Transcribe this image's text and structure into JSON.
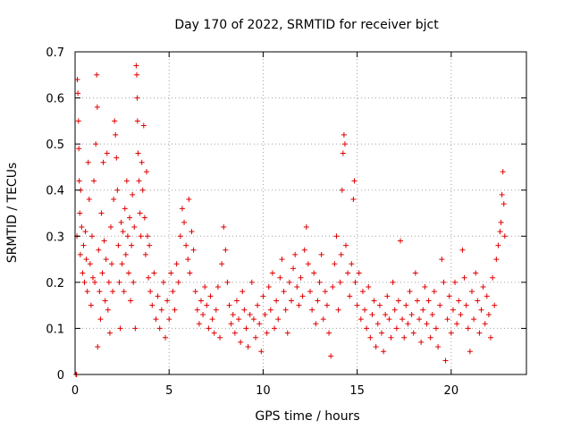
{
  "chart_data": {
    "type": "scatter",
    "title": "Day 170 of 2022, SRMTID for receiver bjct",
    "xlabel": "GPS time / hours",
    "ylabel": "SRMTID / TECUs",
    "xlim": [
      0,
      24
    ],
    "ylim": [
      0,
      0.7
    ],
    "xticks": [
      0,
      5,
      10,
      15,
      20
    ],
    "xtick_labels": [
      "0",
      "5",
      "10",
      "15",
      "20"
    ],
    "yticks": [
      0,
      0.1,
      0.2,
      0.3,
      0.4,
      0.5,
      0.6,
      0.7
    ],
    "ytick_labels": [
      "0",
      "0.1",
      "0.2",
      "0.3",
      "0.4",
      "0.5",
      "0.6",
      "0.7"
    ],
    "grid": true,
    "marker": "+",
    "series": [
      {
        "name": "SRMTID",
        "color": "#e00000",
        "points": [
          [
            0.05,
            0.0
          ],
          [
            0.08,
            0.0
          ],
          [
            0.1,
            0.3
          ],
          [
            0.12,
            0.64
          ],
          [
            0.15,
            0.61
          ],
          [
            0.18,
            0.55
          ],
          [
            0.2,
            0.49
          ],
          [
            0.22,
            0.42
          ],
          [
            0.25,
            0.35
          ],
          [
            0.28,
            0.26
          ],
          [
            0.3,
            0.4
          ],
          [
            0.35,
            0.32
          ],
          [
            0.4,
            0.22
          ],
          [
            0.45,
            0.28
          ],
          [
            0.5,
            0.2
          ],
          [
            0.55,
            0.31
          ],
          [
            0.6,
            0.25
          ],
          [
            0.65,
            0.18
          ],
          [
            0.7,
            0.46
          ],
          [
            0.75,
            0.38
          ],
          [
            0.8,
            0.24
          ],
          [
            0.85,
            0.15
          ],
          [
            0.9,
            0.3
          ],
          [
            0.95,
            0.21
          ],
          [
            1.0,
            0.42
          ],
          [
            1.05,
            0.2
          ],
          [
            1.1,
            0.5
          ],
          [
            1.15,
            0.65
          ],
          [
            1.18,
            0.58
          ],
          [
            1.2,
            0.06
          ],
          [
            1.25,
            0.27
          ],
          [
            1.3,
            0.18
          ],
          [
            1.35,
            0.12
          ],
          [
            1.4,
            0.35
          ],
          [
            1.45,
            0.22
          ],
          [
            1.5,
            0.46
          ],
          [
            1.55,
            0.29
          ],
          [
            1.6,
            0.16
          ],
          [
            1.65,
            0.25
          ],
          [
            1.7,
            0.48
          ],
          [
            1.75,
            0.14
          ],
          [
            1.8,
            0.2
          ],
          [
            1.85,
            0.09
          ],
          [
            1.9,
            0.32
          ],
          [
            1.95,
            0.24
          ],
          [
            2.0,
            0.18
          ],
          [
            2.05,
            0.38
          ],
          [
            2.1,
            0.55
          ],
          [
            2.15,
            0.52
          ],
          [
            2.2,
            0.47
          ],
          [
            2.25,
            0.4
          ],
          [
            2.3,
            0.28
          ],
          [
            2.35,
            0.2
          ],
          [
            2.4,
            0.1
          ],
          [
            2.45,
            0.33
          ],
          [
            2.5,
            0.24
          ],
          [
            2.55,
            0.31
          ],
          [
            2.6,
            0.18
          ],
          [
            2.65,
            0.36
          ],
          [
            2.7,
            0.26
          ],
          [
            2.75,
            0.42
          ],
          [
            2.8,
            0.3
          ],
          [
            2.85,
            0.22
          ],
          [
            2.9,
            0.34
          ],
          [
            2.95,
            0.16
          ],
          [
            3.0,
            0.28
          ],
          [
            3.05,
            0.39
          ],
          [
            3.1,
            0.2
          ],
          [
            3.15,
            0.32
          ],
          [
            3.2,
            0.1
          ],
          [
            3.25,
            0.67
          ],
          [
            3.28,
            0.65
          ],
          [
            3.3,
            0.6
          ],
          [
            3.32,
            0.55
          ],
          [
            3.35,
            0.48
          ],
          [
            3.4,
            0.42
          ],
          [
            3.45,
            0.35
          ],
          [
            3.5,
            0.3
          ],
          [
            3.55,
            0.46
          ],
          [
            3.6,
            0.4
          ],
          [
            3.65,
            0.54
          ],
          [
            3.7,
            0.34
          ],
          [
            3.75,
            0.26
          ],
          [
            3.8,
            0.44
          ],
          [
            3.85,
            0.3
          ],
          [
            3.9,
            0.21
          ],
          [
            3.95,
            0.28
          ],
          [
            4.0,
            0.18
          ],
          [
            4.1,
            0.15
          ],
          [
            4.2,
            0.22
          ],
          [
            4.3,
            0.12
          ],
          [
            4.4,
            0.17
          ],
          [
            4.5,
            0.1
          ],
          [
            4.6,
            0.14
          ],
          [
            4.7,
            0.2
          ],
          [
            4.8,
            0.08
          ],
          [
            4.9,
            0.16
          ],
          [
            5.0,
            0.12
          ],
          [
            5.1,
            0.22
          ],
          [
            5.2,
            0.18
          ],
          [
            5.3,
            0.14
          ],
          [
            5.4,
            0.24
          ],
          [
            5.5,
            0.2
          ],
          [
            5.6,
            0.3
          ],
          [
            5.7,
            0.36
          ],
          [
            5.8,
            0.33
          ],
          [
            5.9,
            0.28
          ],
          [
            6.0,
            0.25
          ],
          [
            6.05,
            0.38
          ],
          [
            6.1,
            0.22
          ],
          [
            6.2,
            0.31
          ],
          [
            6.3,
            0.27
          ],
          [
            6.4,
            0.18
          ],
          [
            6.5,
            0.14
          ],
          [
            6.6,
            0.11
          ],
          [
            6.7,
            0.16
          ],
          [
            6.8,
            0.13
          ],
          [
            6.9,
            0.19
          ],
          [
            7.0,
            0.15
          ],
          [
            7.1,
            0.1
          ],
          [
            7.2,
            0.17
          ],
          [
            7.3,
            0.12
          ],
          [
            7.4,
            0.09
          ],
          [
            7.5,
            0.14
          ],
          [
            7.6,
            0.19
          ],
          [
            7.7,
            0.08
          ],
          [
            7.8,
            0.24
          ],
          [
            7.9,
            0.32
          ],
          [
            8.0,
            0.27
          ],
          [
            8.1,
            0.2
          ],
          [
            8.2,
            0.15
          ],
          [
            8.3,
            0.11
          ],
          [
            8.4,
            0.13
          ],
          [
            8.5,
            0.09
          ],
          [
            8.6,
            0.16
          ],
          [
            8.7,
            0.12
          ],
          [
            8.8,
            0.07
          ],
          [
            8.9,
            0.18
          ],
          [
            9.0,
            0.14
          ],
          [
            9.1,
            0.1
          ],
          [
            9.2,
            0.06
          ],
          [
            9.3,
            0.13
          ],
          [
            9.4,
            0.2
          ],
          [
            9.5,
            0.12
          ],
          [
            9.6,
            0.08
          ],
          [
            9.7,
            0.15
          ],
          [
            9.8,
            0.11
          ],
          [
            9.9,
            0.05
          ],
          [
            10.0,
            0.17
          ],
          [
            10.1,
            0.13
          ],
          [
            10.2,
            0.09
          ],
          [
            10.3,
            0.19
          ],
          [
            10.4,
            0.14
          ],
          [
            10.5,
            0.22
          ],
          [
            10.6,
            0.1
          ],
          [
            10.7,
            0.16
          ],
          [
            10.8,
            0.12
          ],
          [
            10.9,
            0.21
          ],
          [
            11.0,
            0.25
          ],
          [
            11.1,
            0.18
          ],
          [
            11.2,
            0.14
          ],
          [
            11.3,
            0.09
          ],
          [
            11.4,
            0.2
          ],
          [
            11.5,
            0.16
          ],
          [
            11.6,
            0.23
          ],
          [
            11.7,
            0.26
          ],
          [
            11.8,
            0.19
          ],
          [
            11.9,
            0.15
          ],
          [
            12.0,
            0.21
          ],
          [
            12.1,
            0.17
          ],
          [
            12.2,
            0.27
          ],
          [
            12.3,
            0.32
          ],
          [
            12.4,
            0.24
          ],
          [
            12.5,
            0.18
          ],
          [
            12.6,
            0.14
          ],
          [
            12.7,
            0.22
          ],
          [
            12.8,
            0.11
          ],
          [
            12.9,
            0.16
          ],
          [
            13.0,
            0.2
          ],
          [
            13.1,
            0.26
          ],
          [
            13.2,
            0.12
          ],
          [
            13.3,
            0.18
          ],
          [
            13.4,
            0.15
          ],
          [
            13.5,
            0.09
          ],
          [
            13.6,
            0.04
          ],
          [
            13.7,
            0.19
          ],
          [
            13.8,
            0.24
          ],
          [
            13.9,
            0.3
          ],
          [
            14.0,
            0.14
          ],
          [
            14.1,
            0.2
          ],
          [
            14.15,
            0.26
          ],
          [
            14.2,
            0.4
          ],
          [
            14.25,
            0.48
          ],
          [
            14.3,
            0.52
          ],
          [
            14.35,
            0.5
          ],
          [
            14.4,
            0.28
          ],
          [
            14.5,
            0.22
          ],
          [
            14.6,
            0.17
          ],
          [
            14.7,
            0.24
          ],
          [
            14.8,
            0.38
          ],
          [
            14.85,
            0.42
          ],
          [
            14.9,
            0.2
          ],
          [
            15.0,
            0.15
          ],
          [
            15.1,
            0.22
          ],
          [
            15.2,
            0.12
          ],
          [
            15.3,
            0.18
          ],
          [
            15.4,
            0.14
          ],
          [
            15.5,
            0.1
          ],
          [
            15.6,
            0.19
          ],
          [
            15.7,
            0.08
          ],
          [
            15.8,
            0.13
          ],
          [
            15.9,
            0.16
          ],
          [
            16.0,
            0.06
          ],
          [
            16.1,
            0.11
          ],
          [
            16.2,
            0.15
          ],
          [
            16.3,
            0.09
          ],
          [
            16.4,
            0.05
          ],
          [
            16.5,
            0.13
          ],
          [
            16.6,
            0.17
          ],
          [
            16.7,
            0.12
          ],
          [
            16.8,
            0.08
          ],
          [
            16.9,
            0.2
          ],
          [
            17.0,
            0.14
          ],
          [
            17.1,
            0.1
          ],
          [
            17.2,
            0.16
          ],
          [
            17.3,
            0.29
          ],
          [
            17.4,
            0.12
          ],
          [
            17.5,
            0.08
          ],
          [
            17.6,
            0.15
          ],
          [
            17.7,
            0.11
          ],
          [
            17.8,
            0.18
          ],
          [
            17.9,
            0.13
          ],
          [
            18.0,
            0.09
          ],
          [
            18.1,
            0.22
          ],
          [
            18.2,
            0.16
          ],
          [
            18.3,
            0.12
          ],
          [
            18.4,
            0.07
          ],
          [
            18.5,
            0.14
          ],
          [
            18.6,
            0.19
          ],
          [
            18.7,
            0.11
          ],
          [
            18.8,
            0.16
          ],
          [
            18.9,
            0.08
          ],
          [
            19.0,
            0.13
          ],
          [
            19.1,
            0.18
          ],
          [
            19.2,
            0.1
          ],
          [
            19.3,
            0.06
          ],
          [
            19.4,
            0.15
          ],
          [
            19.5,
            0.25
          ],
          [
            19.6,
            0.2
          ],
          [
            19.7,
            0.03
          ],
          [
            19.8,
            0.12
          ],
          [
            19.9,
            0.17
          ],
          [
            20.0,
            0.09
          ],
          [
            20.1,
            0.14
          ],
          [
            20.2,
            0.2
          ],
          [
            20.3,
            0.11
          ],
          [
            20.4,
            0.16
          ],
          [
            20.5,
            0.13
          ],
          [
            20.6,
            0.27
          ],
          [
            20.7,
            0.21
          ],
          [
            20.8,
            0.15
          ],
          [
            20.9,
            0.1
          ],
          [
            21.0,
            0.05
          ],
          [
            21.1,
            0.18
          ],
          [
            21.2,
            0.12
          ],
          [
            21.3,
            0.22
          ],
          [
            21.4,
            0.16
          ],
          [
            21.5,
            0.09
          ],
          [
            21.6,
            0.14
          ],
          [
            21.7,
            0.19
          ],
          [
            21.8,
            0.11
          ],
          [
            21.9,
            0.17
          ],
          [
            22.0,
            0.13
          ],
          [
            22.1,
            0.08
          ],
          [
            22.2,
            0.21
          ],
          [
            22.3,
            0.15
          ],
          [
            22.4,
            0.25
          ],
          [
            22.5,
            0.28
          ],
          [
            22.6,
            0.31
          ],
          [
            22.65,
            0.33
          ],
          [
            22.7,
            0.39
          ],
          [
            22.75,
            0.44
          ],
          [
            22.8,
            0.37
          ],
          [
            22.85,
            0.3
          ]
        ]
      }
    ]
  }
}
